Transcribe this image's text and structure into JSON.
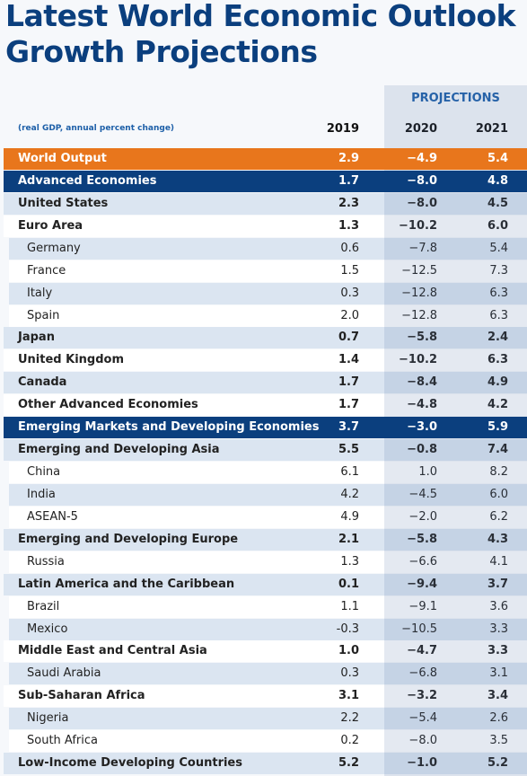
{
  "header": {
    "title": "Latest World Economic Outlook Growth Projections"
  },
  "table": {
    "projections_label": "PROJECTIONS",
    "note": "(real GDP, annual percent change)",
    "columns": [
      "2019",
      "2020",
      "2021"
    ],
    "rows": [
      {
        "label": "World Output",
        "values": [
          "2.9",
          "−4.9",
          "5.4"
        ],
        "bold": true,
        "fill": "#e8761c",
        "text_color": "#ffffff"
      },
      {
        "label": "Advanced Economies",
        "values": [
          "1.7",
          "−8.0",
          "4.8"
        ],
        "bold": true,
        "fill": "#0b3f7e",
        "text_color": "#ffffff"
      },
      {
        "label": "United States",
        "values": [
          "2.3",
          "−8.0",
          "4.5"
        ],
        "bold": true,
        "fill": "#dbe5f1"
      },
      {
        "label": "Euro Area",
        "values": [
          "1.3",
          "−10.2",
          "6.0"
        ],
        "bold": true,
        "fill": "#ffffff"
      },
      {
        "label": "Germany",
        "values": [
          "0.6",
          "−7.8",
          "5.4"
        ],
        "indent": true,
        "fill": "#dbe5f1"
      },
      {
        "label": "France",
        "values": [
          "1.5",
          "−12.5",
          "7.3"
        ],
        "indent": true,
        "fill": "#ffffff"
      },
      {
        "label": "Italy",
        "values": [
          "0.3",
          "−12.8",
          "6.3"
        ],
        "indent": true,
        "fill": "#dbe5f1"
      },
      {
        "label": "Spain",
        "values": [
          "2.0",
          "−12.8",
          "6.3"
        ],
        "indent": true,
        "fill": "#ffffff"
      },
      {
        "label": "Japan",
        "values": [
          "0.7",
          "−5.8",
          "2.4"
        ],
        "bold": true,
        "fill": "#dbe5f1"
      },
      {
        "label": "United Kingdom",
        "values": [
          "1.4",
          "−10.2",
          "6.3"
        ],
        "bold": true,
        "fill": "#ffffff"
      },
      {
        "label": "Canada",
        "values": [
          "1.7",
          "−8.4",
          "4.9"
        ],
        "bold": true,
        "fill": "#dbe5f1"
      },
      {
        "label": "Other Advanced Economies",
        "values": [
          "1.7",
          "−4.8",
          "4.2"
        ],
        "bold": true,
        "fill": "#ffffff"
      },
      {
        "label": "Emerging Markets and Developing Economies",
        "values": [
          "3.7",
          "−3.0",
          "5.9"
        ],
        "bold": true,
        "fill": "#0b3f7e",
        "text_color": "#ffffff"
      },
      {
        "label": "Emerging and Developing Asia",
        "values": [
          "5.5",
          "−0.8",
          "7.4"
        ],
        "bold": true,
        "fill": "#dbe5f1"
      },
      {
        "label": "China",
        "values": [
          "6.1",
          "1.0",
          "8.2"
        ],
        "indent": true,
        "fill": "#ffffff"
      },
      {
        "label": "India",
        "values": [
          "4.2",
          "−4.5",
          "6.0"
        ],
        "indent": true,
        "fill": "#dbe5f1"
      },
      {
        "label": "ASEAN-5",
        "values": [
          "4.9",
          "−2.0",
          "6.2"
        ],
        "indent": true,
        "fill": "#ffffff"
      },
      {
        "label": "Emerging and Developing Europe",
        "values": [
          "2.1",
          "−5.8",
          "4.3"
        ],
        "bold": true,
        "fill": "#dbe5f1"
      },
      {
        "label": "Russia",
        "values": [
          "1.3",
          "−6.6",
          "4.1"
        ],
        "indent": true,
        "fill": "#ffffff"
      },
      {
        "label": "Latin America and the Caribbean",
        "values": [
          "0.1",
          "−9.4",
          "3.7"
        ],
        "bold": true,
        "fill": "#dbe5f1"
      },
      {
        "label": "Brazil",
        "values": [
          "1.1",
          "−9.1",
          "3.6"
        ],
        "indent": true,
        "fill": "#ffffff"
      },
      {
        "label": "Mexico",
        "values": [
          "-0.3",
          "−10.5",
          "3.3"
        ],
        "indent": true,
        "fill": "#dbe5f1"
      },
      {
        "label": "Middle East and Central Asia",
        "values": [
          "1.0",
          "−4.7",
          "3.3"
        ],
        "bold": true,
        "fill": "#ffffff"
      },
      {
        "label": "Saudi Arabia",
        "values": [
          "0.3",
          "−6.8",
          "3.1"
        ],
        "indent": true,
        "fill": "#dbe5f1"
      },
      {
        "label": "Sub-Saharan Africa",
        "values": [
          "3.1",
          "−3.2",
          "3.4"
        ],
        "bold": true,
        "fill": "#ffffff"
      },
      {
        "label": "Nigeria",
        "values": [
          "2.2",
          "−5.4",
          "2.6"
        ],
        "indent": true,
        "fill": "#dbe5f1"
      },
      {
        "label": "South Africa",
        "values": [
          "0.2",
          "−8.0",
          "3.5"
        ],
        "indent": true,
        "fill": "#ffffff"
      },
      {
        "label": "Low-Income Developing Countries",
        "values": [
          "5.2",
          "−1.0",
          "5.2"
        ],
        "bold": true,
        "fill": "#dbe5f1"
      }
    ]
  }
}
